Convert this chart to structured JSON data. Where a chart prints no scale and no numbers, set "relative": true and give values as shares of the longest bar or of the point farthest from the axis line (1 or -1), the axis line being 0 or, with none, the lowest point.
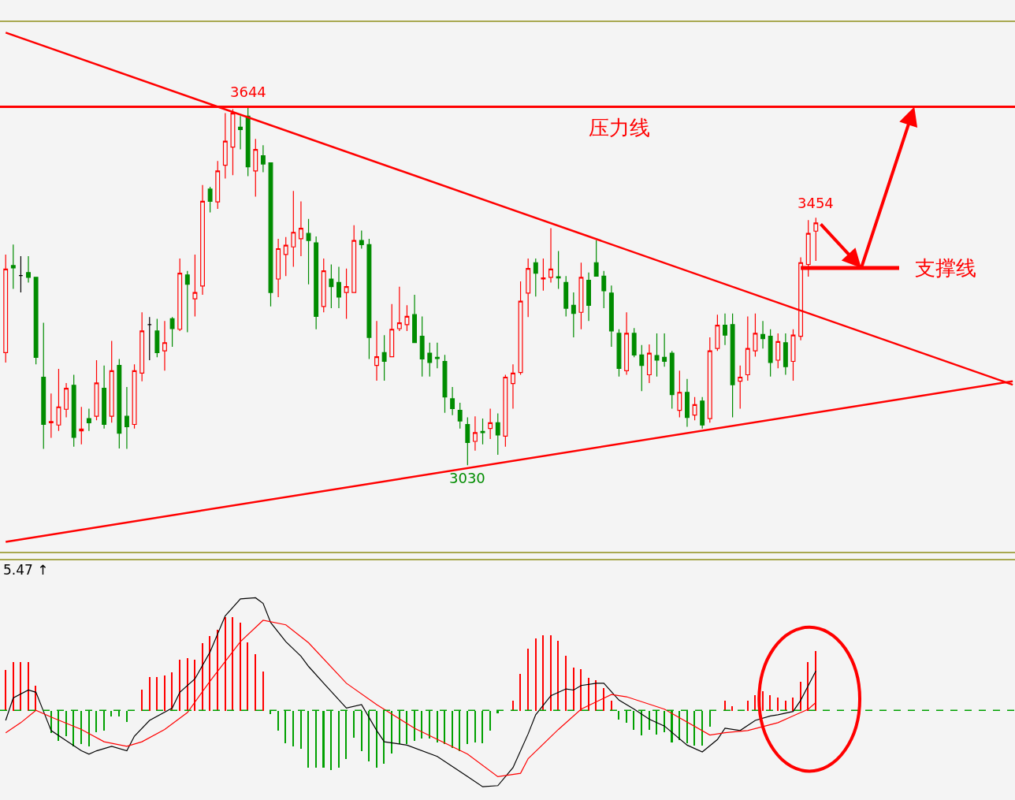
{
  "chart_data": [
    {
      "type": "candlestick",
      "tick_labels": false,
      "legend": false,
      "categories": [
        null,
        null,
        null,
        null,
        null,
        null,
        null,
        null,
        null,
        null,
        null,
        null,
        null,
        null,
        null,
        null,
        null,
        null,
        null,
        null,
        null,
        null,
        null,
        null,
        null,
        null,
        null,
        null,
        null,
        null,
        null,
        null,
        null,
        null,
        null,
        null,
        null,
        null,
        null,
        null,
        null,
        null,
        null,
        null,
        null,
        null,
        null,
        null,
        null,
        null,
        null,
        null,
        null,
        null,
        null,
        null,
        null,
        null,
        null,
        null,
        null,
        null,
        null,
        null,
        null,
        null,
        null,
        null,
        null,
        null,
        null,
        null,
        null,
        null,
        null,
        null,
        null,
        null,
        null,
        null,
        null,
        null,
        null,
        null,
        null,
        null,
        null,
        null,
        null,
        null,
        null,
        null,
        null,
        null,
        null,
        null,
        null,
        null,
        null,
        null,
        null,
        null,
        null,
        null,
        null,
        null,
        null,
        null,
        null,
        null,
        null,
        null,
        null,
        null,
        null,
        null,
        null,
        null,
        null,
        null,
        null,
        null,
        null,
        null,
        null,
        null,
        null,
        null,
        null,
        null,
        null,
        null,
        null,
        null
      ],
      "colors": [
        "#ff0000",
        "#008c00",
        "#000000",
        "#008c00",
        "#008c00",
        "#008c00",
        "#ff0000",
        "#ff0000",
        "#ff0000",
        "#008c00",
        "#ff0000",
        "#008c00",
        "#ff0000",
        "#008c00",
        "#ff0000",
        "#008c00",
        "#008c00",
        "#ff0000",
        "#ff0000",
        "#000000",
        "#008c00",
        "#ff0000",
        "#008c00",
        "#ff0000",
        "#008c00",
        "#ff0000",
        "#ff0000",
        "#008c00",
        "#ff0000",
        "#ff0000",
        "#ff0000",
        "#008c00",
        "#008c00",
        "#ff0000",
        "#008c00",
        "#008c00",
        "#ff0000",
        "#ff0000",
        "#ff0000",
        "#ff0000",
        "#008c00",
        "#008c00",
        "#ff0000",
        "#008c00",
        "#008c00",
        "#ff0000",
        "#ff0000",
        "#008c00",
        "#008c00",
        "#ff0000",
        "#008c00",
        "#ff0000",
        "#ff0000",
        "#ff0000",
        "#008c00",
        "#008c00",
        "#008c00",
        "#008c00",
        "#008c00",
        "#008c00",
        "#008c00",
        "#008c00",
        "#ff0000",
        "#008c00",
        "#ff0000",
        "#008c00",
        "#ff0000",
        "#ff0000",
        "#ff0000",
        "#ff0000",
        "#008c00",
        "#ff0000",
        "#ff0000",
        "#008c00",
        "#008c00",
        "#008c00",
        "#ff0000",
        "#008c00",
        "#008c00",
        "#008c00",
        "#008c00",
        "#008c00",
        "#ff0000",
        "#008c00",
        "#008c00",
        "#ff0000",
        "#008c00",
        "#008c00",
        "#008c00",
        "#ff0000",
        "#008c00",
        "#ff0000",
        "#008c00",
        "#ff0000",
        "#ff0000",
        "#008c00",
        "#008c00",
        "#ff0000",
        "#ff0000",
        "#ff0000",
        "#008c00",
        "#008c00",
        "#ff0000",
        "#008c00",
        "#ff0000",
        "#ff0000",
        "#ff0000",
        "#ff0000",
        null,
        null,
        null,
        null,
        null,
        null,
        null,
        null,
        null,
        null,
        null,
        null,
        null,
        null,
        null,
        null,
        null,
        null,
        null,
        null,
        null,
        null,
        null,
        null,
        null,
        null
      ],
      "ohlc": [
        [
          3223,
          3391,
          3206,
          3366
        ],
        [
          3372,
          3408,
          3332,
          3368
        ],
        [
          3355,
          3388,
          3326,
          3355
        ],
        [
          3360,
          3388,
          3343,
          3352
        ],
        [
          3352,
          3352,
          3203,
          3215
        ],
        [
          3181,
          3274,
          3058,
          3100
        ],
        [
          3103,
          3153,
          3077,
          3105
        ],
        [
          3099,
          3195,
          3089,
          3130
        ],
        [
          3126,
          3171,
          3112,
          3162
        ],
        [
          3167,
          3185,
          3062,
          3078
        ],
        [
          3089,
          3130,
          3066,
          3092
        ],
        [
          3110,
          3127,
          3089,
          3103
        ],
        [
          3114,
          3210,
          3107,
          3171
        ],
        [
          3162,
          3201,
          3093,
          3100
        ],
        [
          3114,
          3243,
          3103,
          3192
        ],
        [
          3201,
          3212,
          3059,
          3085
        ],
        [
          3114,
          3164,
          3058,
          3096
        ],
        [
          3100,
          3203,
          3093,
          3192
        ],
        [
          3188,
          3292,
          3174,
          3260
        ],
        [
          3271,
          3284,
          3210,
          3271
        ],
        [
          3260,
          3281,
          3215,
          3223
        ],
        [
          3226,
          3277,
          3192,
          3240
        ],
        [
          3281,
          3284,
          3233,
          3264
        ],
        [
          3263,
          3384,
          3260,
          3359
        ],
        [
          3356,
          3363,
          3258,
          3340
        ],
        [
          3315,
          3391,
          3285,
          3326
        ],
        [
          3337,
          3510,
          3322,
          3482
        ],
        [
          3503,
          3507,
          3463,
          3482
        ],
        [
          3481,
          3551,
          3469,
          3534
        ],
        [
          3544,
          3633,
          3521,
          3585
        ],
        [
          3575,
          3640,
          3527,
          3633
        ],
        [
          3609,
          3628,
          3571,
          3605
        ],
        [
          3628,
          3644,
          3525,
          3541
        ],
        [
          3534,
          3589,
          3490,
          3571
        ],
        [
          3560,
          3578,
          3532,
          3546
        ],
        [
          3548,
          3548,
          3302,
          3326
        ],
        [
          3349,
          3418,
          3318,
          3401
        ],
        [
          3391,
          3421,
          3354,
          3407
        ],
        [
          3404,
          3500,
          3370,
          3429
        ],
        [
          3418,
          3482,
          3388,
          3436
        ],
        [
          3427,
          3452,
          3340,
          3415
        ],
        [
          3411,
          3422,
          3263,
          3285
        ],
        [
          3302,
          3384,
          3292,
          3363
        ],
        [
          3349,
          3374,
          3299,
          3336
        ],
        [
          3343,
          3370,
          3299,
          3318
        ],
        [
          3326,
          3367,
          3281,
          3336
        ],
        [
          3326,
          3441,
          3326,
          3415
        ],
        [
          3415,
          3432,
          3401,
          3408
        ],
        [
          3408,
          3418,
          3212,
          3249
        ],
        [
          3201,
          3277,
          3175,
          3216
        ],
        [
          3223,
          3253,
          3175,
          3208
        ],
        [
          3216,
          3306,
          3216,
          3263
        ],
        [
          3264,
          3336,
          3260,
          3274
        ],
        [
          3271,
          3304,
          3260,
          3285
        ],
        [
          3288,
          3322,
          3240,
          3240
        ],
        [
          3251,
          3285,
          3182,
          3212
        ],
        [
          3222,
          3240,
          3182,
          3206
        ],
        [
          3215,
          3240,
          3196,
          3213
        ],
        [
          3208,
          3219,
          3120,
          3147
        ],
        [
          3144,
          3164,
          3116,
          3127
        ],
        [
          3124,
          3137,
          3093,
          3106
        ],
        [
          3100,
          3112,
          3030,
          3069
        ],
        [
          3071,
          3114,
          3055,
          3086
        ],
        [
          3088,
          3110,
          3066,
          3086
        ],
        [
          3093,
          3127,
          3075,
          3103
        ],
        [
          3103,
          3119,
          3048,
          3082
        ],
        [
          3080,
          3185,
          3062,
          3181
        ],
        [
          3170,
          3203,
          3127,
          3188
        ],
        [
          3189,
          3345,
          3185,
          3311
        ],
        [
          3325,
          3384,
          3284,
          3367
        ],
        [
          3377,
          3384,
          3319,
          3359
        ],
        [
          3349,
          3384,
          3329,
          3351
        ],
        [
          3352,
          3436,
          3343,
          3366
        ],
        [
          3353,
          3397,
          3332,
          3351
        ],
        [
          3343,
          3354,
          3285,
          3299
        ],
        [
          3304,
          3326,
          3249,
          3290
        ],
        [
          3292,
          3377,
          3263,
          3352
        ],
        [
          3347,
          3360,
          3277,
          3304
        ],
        [
          3377,
          3415,
          3354,
          3354
        ],
        [
          3354,
          3363,
          3299,
          3329
        ],
        [
          3325,
          3338,
          3233,
          3260
        ],
        [
          3256,
          3263,
          3182,
          3196
        ],
        [
          3192,
          3292,
          3185,
          3256
        ],
        [
          3256,
          3265,
          3215,
          3219
        ],
        [
          3219,
          3236,
          3157,
          3201
        ],
        [
          3185,
          3237,
          3171,
          3222
        ],
        [
          3218,
          3256,
          3182,
          3210
        ],
        [
          3215,
          3256,
          3199,
          3208
        ],
        [
          3222,
          3226,
          3127,
          3151
        ],
        [
          3124,
          3192,
          3112,
          3155
        ],
        [
          3155,
          3178,
          3096,
          3112
        ],
        [
          3116,
          3147,
          3107,
          3134
        ],
        [
          3140,
          3147,
          3093,
          3099
        ],
        [
          3110,
          3249,
          3103,
          3226
        ],
        [
          3230,
          3288,
          3226,
          3270
        ],
        [
          3270,
          3290,
          3236,
          3253
        ],
        [
          3271,
          3290,
          3112,
          3168
        ],
        [
          3174,
          3201,
          3127,
          3181
        ],
        [
          3185,
          3285,
          3175,
          3230
        ],
        [
          3226,
          3290,
          3216,
          3256
        ],
        [
          3254,
          3277,
          3230,
          3247
        ],
        [
          3251,
          3263,
          3182,
          3206
        ],
        [
          3210,
          3256,
          3196,
          3242
        ],
        [
          3240,
          3256,
          3185,
          3199
        ],
        [
          3208,
          3263,
          3175,
          3253
        ],
        [
          3251,
          3386,
          3244,
          3377
        ],
        [
          3374,
          3450,
          3353,
          3427
        ],
        [
          3431,
          3454,
          3380,
          3445
        ],
        null,
        null,
        null,
        null,
        null,
        null,
        null,
        null,
        null,
        null,
        null,
        null,
        null,
        null,
        null,
        null,
        null,
        null,
        null,
        null,
        null,
        null,
        null,
        null,
        null,
        null
      ],
      "series": [
        {
          "type": "line",
          "color": "#ff0000",
          "values": [
            3771,
            null,
            null,
            null,
            null,
            null,
            null,
            null,
            null,
            null,
            null,
            null,
            null,
            null,
            null,
            null,
            null,
            null,
            null,
            null,
            null,
            null,
            null,
            null,
            null,
            null,
            null,
            null,
            null,
            null,
            null,
            null,
            null,
            null,
            null,
            null,
            null,
            null,
            null,
            null,
            null,
            null,
            null,
            null,
            null,
            null,
            null,
            null,
            null,
            null,
            null,
            null,
            null,
            null,
            null,
            null,
            null,
            null,
            null,
            null,
            null,
            null,
            null,
            null,
            null,
            null,
            null,
            null,
            null,
            null,
            null,
            null,
            null,
            null,
            null,
            null,
            null,
            null,
            null,
            null,
            null,
            null,
            null,
            null,
            null,
            null,
            null,
            null,
            null,
            null,
            null,
            null,
            null,
            null,
            null,
            null,
            null,
            null,
            null,
            null,
            null,
            null,
            null,
            null,
            null,
            null,
            null,
            null,
            null,
            null,
            null,
            null,
            null,
            null,
            null,
            null,
            null,
            null,
            null,
            null,
            null,
            null,
            null,
            null,
            null,
            null,
            null,
            null,
            null,
            null,
            null,
            null,
            null,
            3168
          ]
        },
        {
          "type": "line",
          "color": "#ff0000",
          "values": [
            2899,
            null,
            null,
            null,
            null,
            null,
            null,
            null,
            null,
            null,
            null,
            null,
            null,
            null,
            null,
            null,
            null,
            null,
            null,
            null,
            null,
            null,
            null,
            null,
            null,
            null,
            null,
            null,
            null,
            null,
            null,
            null,
            null,
            null,
            null,
            null,
            null,
            null,
            null,
            null,
            null,
            null,
            null,
            null,
            null,
            null,
            null,
            null,
            null,
            null,
            null,
            null,
            null,
            null,
            null,
            null,
            null,
            null,
            null,
            null,
            null,
            null,
            null,
            null,
            null,
            null,
            null,
            null,
            null,
            null,
            null,
            null,
            null,
            null,
            null,
            null,
            null,
            null,
            null,
            null,
            null,
            null,
            null,
            null,
            null,
            null,
            null,
            null,
            null,
            null,
            null,
            null,
            null,
            null,
            null,
            null,
            null,
            null,
            null,
            null,
            null,
            null,
            null,
            null,
            null,
            null,
            null,
            null,
            null,
            null,
            null,
            null,
            null,
            null,
            null,
            null,
            null,
            null,
            null,
            null,
            null,
            null,
            null,
            null,
            null,
            null,
            null,
            null,
            null,
            null,
            null,
            null,
            null,
            3174
          ]
        },
        {
          "type": "line",
          "name": "支撑线",
          "color": "#ff0000",
          "values": [
            null,
            null,
            null,
            null,
            null,
            null,
            null,
            null,
            null,
            null,
            null,
            null,
            null,
            null,
            null,
            null,
            null,
            null,
            null,
            null,
            null,
            null,
            null,
            null,
            null,
            null,
            null,
            null,
            null,
            null,
            null,
            null,
            null,
            null,
            null,
            null,
            null,
            null,
            null,
            null,
            null,
            null,
            null,
            null,
            null,
            null,
            null,
            null,
            null,
            null,
            null,
            null,
            null,
            null,
            null,
            null,
            null,
            null,
            null,
            null,
            null,
            null,
            null,
            null,
            null,
            null,
            null,
            null,
            null,
            null,
            null,
            null,
            null,
            null,
            null,
            null,
            null,
            null,
            null,
            null,
            null,
            null,
            null,
            null,
            null,
            null,
            null,
            null,
            null,
            null,
            null,
            null,
            null,
            null,
            null,
            null,
            null,
            null,
            null,
            null,
            null,
            null,
            null,
            null,
            null,
            3368,
            null,
            null,
            null,
            null,
            null,
            null,
            null,
            null,
            null,
            null,
            null,
            null,
            3368,
            null,
            null,
            null,
            null,
            null,
            null,
            null,
            null,
            null,
            null,
            null,
            null,
            null,
            null,
            null
          ]
        }
      ],
      "ref_lines": [
        {
          "axis": "y",
          "value": 3644,
          "label": "压力线",
          "color": "#ff0000"
        }
      ],
      "annotations": [
        {
          "text": "3644",
          "y": 3644
        },
        {
          "text": "3454",
          "y": 3454
        },
        {
          "text": "3030",
          "y": 3030
        }
      ]
    },
    {
      "type": "bar",
      "relative": true,
      "tick_labels": false,
      "legend": false,
      "categories": [
        null,
        null,
        null,
        null,
        null,
        null,
        null,
        null,
        null,
        null,
        null,
        null,
        null,
        null,
        null,
        null,
        null,
        null,
        null,
        null,
        null,
        null,
        null,
        null,
        null,
        null,
        null,
        null,
        null,
        null,
        null,
        null,
        null,
        null,
        null,
        null,
        null,
        null,
        null,
        null,
        null,
        null,
        null,
        null,
        null,
        null,
        null,
        null,
        null,
        null,
        null,
        null,
        null,
        null,
        null,
        null,
        null,
        null,
        null,
        null,
        null,
        null,
        null,
        null,
        null,
        null,
        null,
        null,
        null,
        null,
        null,
        null,
        null,
        null,
        null,
        null,
        null,
        null,
        null,
        null,
        null,
        null,
        null,
        null,
        null,
        null,
        null,
        null,
        null,
        null,
        null,
        null,
        null,
        null,
        null,
        null,
        null,
        null,
        null,
        null,
        null,
        null,
        null,
        null,
        null,
        null,
        null,
        null,
        null,
        null,
        null,
        null,
        null,
        null,
        null,
        null,
        null,
        null,
        null,
        null,
        null,
        null,
        null,
        null,
        null,
        null,
        null,
        null,
        null,
        null,
        null,
        null,
        null,
        null
      ],
      "series": [
        {
          "values": [
            0.36,
            0.43,
            0.43,
            0.43,
            0.22,
            null,
            -0.2,
            -0.27,
            -0.23,
            -0.32,
            -0.3,
            -0.32,
            -0.19,
            -0.18,
            -0.05,
            -0.05,
            -0.1,
            0,
            0.19,
            0.3,
            0.3,
            0.31,
            0.34,
            0.45,
            0.47,
            0.45,
            0.6,
            0.66,
            0.72,
            0.83,
            0.83,
            0.78,
            0.61,
            0.5,
            0.35,
            -0.03,
            -0.18,
            -0.29,
            -0.32,
            -0.34,
            -0.51,
            -0.51,
            -0.51,
            -0.53,
            -0.51,
            -0.43,
            -0.24,
            -0.36,
            -0.45,
            -0.51,
            -0.47,
            -0.38,
            -0.3,
            -0.3,
            -0.27,
            -0.25,
            -0.25,
            -0.28,
            -0.3,
            -0.33,
            -0.36,
            -0.3,
            -0.28,
            -0.29,
            -0.18,
            -0.02,
            0,
            0.09,
            0.33,
            0.55,
            0.64,
            0.67,
            0.67,
            0.62,
            0.49,
            0.38,
            0.37,
            0.29,
            0.27,
            0.2,
            0.09,
            -0.08,
            -0.11,
            -0.17,
            -0.22,
            -0.17,
            -0.21,
            -0.19,
            -0.28,
            -0.26,
            -0.29,
            -0.31,
            -0.31,
            -0.14,
            0,
            0.09,
            0.04,
            null,
            0.09,
            0.14,
            0.17,
            0.14,
            0.12,
            0.09,
            0.12,
            0.26,
            0.43,
            0.53,
            null,
            null,
            null,
            null,
            null,
            null,
            null,
            null,
            null,
            null,
            null,
            null,
            null,
            null,
            null,
            null,
            null,
            null,
            null,
            null,
            null,
            null,
            null,
            null,
            null,
            null
          ],
          "colors": [
            "#ff0000",
            "#ff0000",
            "#ff0000",
            "#ff0000",
            "#ff0000",
            "#00a000",
            "#00a000",
            "#00a000",
            "#00a000",
            "#00a000",
            "#00a000",
            "#00a000",
            "#00a000",
            "#00a000",
            "#00a000",
            "#00a000",
            "#00a000",
            "#00a000",
            "#ff0000",
            "#ff0000",
            "#ff0000",
            "#ff0000",
            "#ff0000",
            "#ff0000",
            "#ff0000",
            "#ff0000",
            "#ff0000",
            "#ff0000",
            "#ff0000",
            "#ff0000",
            "#ff0000",
            "#ff0000",
            "#ff0000",
            "#ff0000",
            "#ff0000",
            "#00a000",
            "#00a000",
            "#00a000",
            "#00a000",
            "#00a000",
            "#00a000",
            "#00a000",
            "#00a000",
            "#00a000",
            "#00a000",
            "#00a000",
            "#00a000",
            "#00a000",
            "#00a000",
            "#00a000",
            "#00a000",
            "#00a000",
            "#00a000",
            "#00a000",
            "#00a000",
            "#00a000",
            "#00a000",
            "#00a000",
            "#00a000",
            "#00a000",
            "#00a000",
            "#00a000",
            "#00a000",
            "#00a000",
            "#00a000",
            "#00a000",
            "#00a000",
            "#ff0000",
            "#ff0000",
            "#ff0000",
            "#ff0000",
            "#ff0000",
            "#ff0000",
            "#ff0000",
            "#ff0000",
            "#ff0000",
            "#ff0000",
            "#ff0000",
            "#ff0000",
            "#ff0000",
            "#ff0000",
            "#00a000",
            "#00a000",
            "#00a000",
            "#00a000",
            "#00a000",
            "#00a000",
            "#00a000",
            "#00a000",
            "#00a000",
            "#00a000",
            "#00a000",
            "#00a000",
            "#00a000",
            "#00a000",
            "#ff0000",
            "#ff0000",
            "#ff0000",
            "#ff0000",
            "#ff0000",
            "#ff0000",
            "#ff0000",
            "#ff0000",
            "#ff0000",
            "#ff0000",
            "#ff0000",
            "#ff0000",
            "#ff0000",
            null,
            null,
            null,
            null,
            null,
            null,
            null,
            null,
            null,
            null,
            null,
            null,
            null,
            null,
            null,
            null,
            null,
            null,
            null,
            null,
            null,
            null,
            null,
            null,
            null,
            null
          ]
        },
        {
          "type": "line",
          "color": "#000000",
          "values": [
            -0.09,
            0.11,
            null,
            0.18,
            0.16,
            -0.01,
            -0.18,
            null,
            -0.27,
            null,
            -0.36,
            -0.39,
            -0.36,
            null,
            -0.32,
            null,
            -0.36,
            -0.23,
            null,
            -0.09,
            null,
            null,
            0.02,
            0.16,
            null,
            0.28,
            null,
            0.52,
            null,
            0.84,
            null,
            0.99,
            null,
            1.0,
            0.95,
            0.78,
            null,
            0.61,
            null,
            0.48,
            0.39,
            null,
            0.24,
            null,
            null,
            0.02,
            null,
            0.05,
            null,
            -0.18,
            -0.28,
            null,
            null,
            -0.31,
            null,
            null,
            null,
            -0.41,
            null,
            null,
            null,
            -0.59,
            null,
            -0.68,
            null,
            -0.67,
            null,
            -0.51,
            null,
            -0.21,
            -0.04,
            null,
            0.13,
            null,
            0.19,
            0.18,
            0.22,
            null,
            0.24,
            0.24,
            null,
            0.09,
            null,
            0.01,
            null,
            -0.08,
            null,
            -0.14,
            null,
            null,
            -0.31,
            null,
            -0.37,
            null,
            -0.26,
            -0.16,
            null,
            -0.18,
            null,
            -0.09,
            null,
            -0.05,
            -0.04,
            null,
            -0.01,
            0.09,
            null,
            0.35,
            null,
            null,
            null,
            null,
            null,
            null,
            null,
            null,
            null,
            null,
            null,
            null,
            null,
            null,
            null,
            null,
            null,
            null,
            null,
            null,
            null,
            null,
            null,
            null,
            null,
            null
          ]
        },
        {
          "type": "line",
          "color": "#ff0000",
          "values": [
            -0.2,
            null,
            -0.11,
            null,
            0.0,
            null,
            -0.06,
            null,
            null,
            null,
            -0.17,
            null,
            null,
            -0.28,
            null,
            null,
            -0.32,
            null,
            -0.28,
            null,
            null,
            -0.17,
            null,
            null,
            -0.02,
            null,
            null,
            0.26,
            null,
            null,
            null,
            0.61,
            null,
            null,
            0.8,
            null,
            null,
            0.76,
            null,
            null,
            0.6,
            null,
            null,
            null,
            null,
            0.24,
            null,
            null,
            null,
            0.05,
            null,
            null,
            null,
            null,
            -0.16,
            null,
            null,
            null,
            null,
            null,
            null,
            -0.39,
            null,
            null,
            null,
            -0.59,
            null,
            null,
            -0.56,
            -0.43,
            null,
            null,
            null,
            -0.17,
            null,
            null,
            0.01,
            null,
            null,
            null,
            0.14,
            null,
            0.12,
            null,
            null,
            null,
            null,
            0.01,
            null,
            null,
            null,
            null,
            null,
            -0.22,
            null,
            -0.2,
            null,
            null,
            -0.18,
            null,
            null,
            null,
            -0.11,
            null,
            -0.05,
            null,
            0.01,
            0.07,
            null,
            null,
            null,
            null,
            null,
            null,
            null,
            null,
            null,
            null,
            null,
            null,
            null,
            null,
            null,
            null,
            null,
            null,
            null,
            null,
            null,
            null,
            null,
            null,
            null,
            null
          ]
        }
      ],
      "ref_lines": [
        {
          "axis": "y",
          "value": 0,
          "color": "#00a000",
          "line_style": "dashed"
        }
      ],
      "annotations": [
        "5.47 ↑"
      ]
    }
  ]
}
